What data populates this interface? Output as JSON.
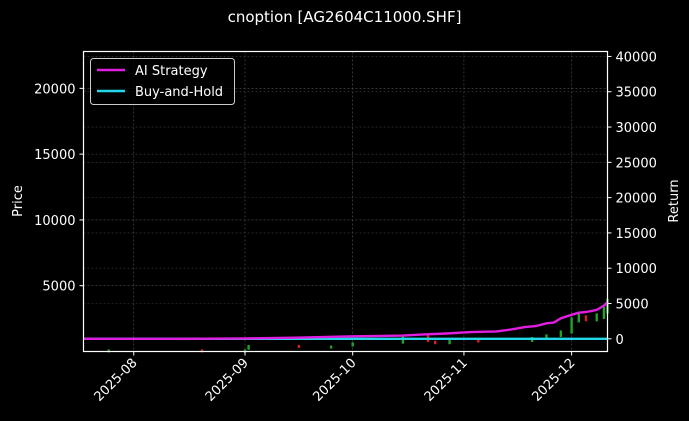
{
  "figure": {
    "title": "cnoption [AG2604C11000.SHF]",
    "background": "#000000"
  },
  "legend": {
    "items": [
      {
        "label": "AI Strategy",
        "color": "#e01ee0"
      },
      {
        "label": "Buy-and-Hold",
        "color": "#22d8e8"
      }
    ]
  },
  "chart_data": {
    "type": "line",
    "title": "cnoption [AG2604C11000.SHF]",
    "xlabel": "",
    "ylabel_left": "Price",
    "ylabel_right": "Return",
    "x_ticks": [
      "2025-08",
      "2025-09",
      "2025-10",
      "2025-11",
      "2025-12"
    ],
    "y_left_ticks": [
      5000,
      10000,
      15000,
      20000
    ],
    "y_left_range": [
      0,
      22800
    ],
    "y_right_ticks": [
      0,
      5000,
      10000,
      15000,
      20000,
      25000,
      30000,
      35000,
      40000
    ],
    "y_right_range": [
      -1800,
      40700
    ],
    "grid": true,
    "legend_position": "upper left",
    "x_range": [
      "2025-07-18",
      "2025-12-11"
    ],
    "series": [
      {
        "name": "AI Strategy",
        "axis": "right",
        "color": "#e01ee0",
        "x": [
          "2025-07-18",
          "2025-08-15",
          "2025-09-01",
          "2025-09-15",
          "2025-10-01",
          "2025-10-15",
          "2025-10-20",
          "2025-10-27",
          "2025-11-03",
          "2025-11-10",
          "2025-11-14",
          "2025-11-18",
          "2025-11-21",
          "2025-11-24",
          "2025-11-26",
          "2025-11-28",
          "2025-12-01",
          "2025-12-03",
          "2025-12-05",
          "2025-12-08",
          "2025-12-10",
          "2025-12-11"
        ],
        "values": [
          0,
          0,
          50,
          150,
          350,
          450,
          600,
          750,
          950,
          1050,
          1300,
          1650,
          1800,
          2200,
          2300,
          2900,
          3400,
          3700,
          3800,
          4100,
          4700,
          5200
        ]
      },
      {
        "name": "Buy-and-Hold",
        "axis": "right",
        "color": "#22d8e8",
        "x": [
          "2025-07-18",
          "2025-12-11"
        ],
        "values": [
          0,
          0
        ]
      },
      {
        "name": "Price (candles)",
        "axis": "left",
        "type": "candlestick",
        "up_color": "#1fa32a",
        "down_color": "#d62020",
        "x": [
          "2025-07-25",
          "2025-08-20",
          "2025-09-01",
          "2025-09-02",
          "2025-09-16",
          "2025-09-25",
          "2025-10-01",
          "2025-10-15",
          "2025-10-22",
          "2025-10-24",
          "2025-10-28",
          "2025-11-05",
          "2025-11-20",
          "2025-11-24",
          "2025-11-28",
          "2025-12-01",
          "2025-12-03",
          "2025-12-05",
          "2025-12-08",
          "2025-12-10",
          "2025-12-11"
        ],
        "values": [
          120,
          60,
          150,
          500,
          350,
          450,
          700,
          1300,
          850,
          650,
          950,
          850,
          1100,
          1300,
          1600,
          2600,
          3000,
          2700,
          2900,
          3400,
          4000
        ]
      }
    ]
  }
}
